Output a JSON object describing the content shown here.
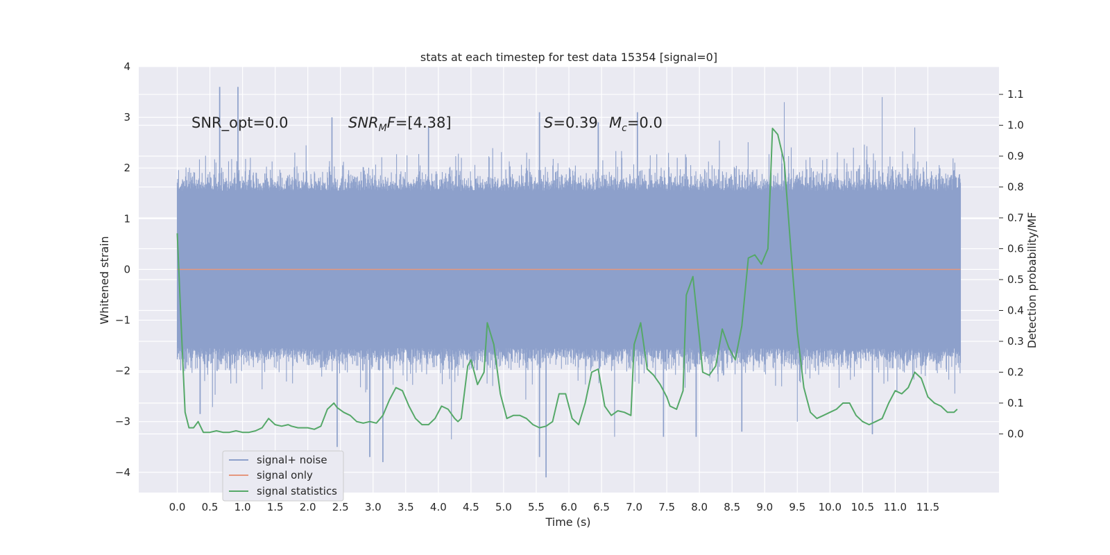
{
  "chart_data": {
    "type": "line",
    "title": "stats at each timestep for test data 15354 [signal=0]",
    "xlabel": "Time (s)",
    "ylabel": "Whitened strain",
    "y2label": "Detection probability/MF",
    "xlim": [
      -0.59,
      12.59
    ],
    "ylim": [
      -4.4,
      4.0
    ],
    "y2lim": [
      -0.19,
      1.19
    ],
    "x_ticks": [
      "0.0",
      "0.5",
      "1.0",
      "1.5",
      "2.0",
      "2.5",
      "3.0",
      "3.5",
      "4.0",
      "4.5",
      "5.0",
      "5.5",
      "6.0",
      "6.5",
      "7.0",
      "7.5",
      "8.0",
      "8.5",
      "9.0",
      "9.5",
      "10.0",
      "10.5",
      "11.0",
      "11.5"
    ],
    "y_ticks": [
      "4",
      "3",
      "2",
      "1",
      "0",
      "−1",
      "−2",
      "−3",
      "−4"
    ],
    "y2_ticks": [
      "1.1",
      "1.0",
      "0.9",
      "0.8",
      "0.7",
      "0.6",
      "0.5",
      "0.4",
      "0.3",
      "0.2",
      "0.1",
      "0.0"
    ],
    "grid": true,
    "legend_placement": "bottom-left",
    "annotations": {
      "snr_opt": "SNR_opt=0.0",
      "snr_mf_prefix": "SNR",
      "snr_mf_sub": "M",
      "snr_mf_mid": "F",
      "snr_mf_suffix": "=[4.38]",
      "s_label": "S",
      "s_value": "=0.39",
      "mc_label": "M",
      "mc_sub": "c",
      "mc_value": "=0.0"
    },
    "series": [
      {
        "name": "signal+ noise",
        "color": "#8da0cb",
        "kind": "dense noise band, approx. range -2.4 to +2.3 with spikes to about -4.1 / +3.6",
        "x_range": [
          0,
          12.0
        ],
        "spikes_up": [
          [
            0.65,
            3.6
          ],
          [
            0.93,
            3.6
          ],
          [
            2.37,
            3.0
          ],
          [
            3.85,
            2.8
          ],
          [
            5.55,
            3.1
          ],
          [
            6.45,
            2.9
          ],
          [
            7.05,
            3.1
          ],
          [
            9.3,
            3.3
          ],
          [
            10.8,
            3.4
          ],
          [
            11.3,
            2.8
          ]
        ],
        "spikes_down": [
          [
            0.35,
            -2.85
          ],
          [
            2.45,
            -3.5
          ],
          [
            2.95,
            -3.7
          ],
          [
            3.15,
            -3.8
          ],
          [
            4.2,
            -3.35
          ],
          [
            5.55,
            -3.7
          ],
          [
            5.65,
            -4.1
          ],
          [
            6.7,
            -3.3
          ],
          [
            7.45,
            -3.3
          ],
          [
            7.95,
            -3.3
          ],
          [
            8.65,
            -3.2
          ],
          [
            9.5,
            -3.0
          ],
          [
            10.65,
            -3.25
          ]
        ]
      },
      {
        "name": "signal only",
        "color": "#e5977d",
        "x": [
          0,
          12.0
        ],
        "y": [
          0,
          0
        ]
      },
      {
        "name": "signal statistics",
        "color": "#55a868",
        "axis": "right",
        "x": [
          0.0,
          0.06,
          0.12,
          0.18,
          0.25,
          0.32,
          0.4,
          0.5,
          0.6,
          0.7,
          0.8,
          0.9,
          1.0,
          1.1,
          1.2,
          1.3,
          1.4,
          1.5,
          1.6,
          1.7,
          1.75,
          1.85,
          1.9,
          2.0,
          2.1,
          2.2,
          2.3,
          2.4,
          2.45,
          2.55,
          2.65,
          2.75,
          2.85,
          2.95,
          3.05,
          3.15,
          3.25,
          3.35,
          3.45,
          3.55,
          3.65,
          3.75,
          3.85,
          3.95,
          4.05,
          4.15,
          4.25,
          4.3,
          4.35,
          4.45,
          4.5,
          4.6,
          4.7,
          4.75,
          4.85,
          4.95,
          5.05,
          5.15,
          5.25,
          5.35,
          5.45,
          5.55,
          5.65,
          5.75,
          5.85,
          5.95,
          6.05,
          6.15,
          6.25,
          6.35,
          6.45,
          6.55,
          6.65,
          6.75,
          6.85,
          6.95,
          7.0,
          7.1,
          7.2,
          7.3,
          7.4,
          7.5,
          7.55,
          7.65,
          7.75,
          7.8,
          7.9,
          8.0,
          8.05,
          8.15,
          8.25,
          8.35,
          8.45,
          8.55,
          8.65,
          8.75,
          8.85,
          8.95,
          9.05,
          9.12,
          9.2,
          9.3,
          9.4,
          9.5,
          9.6,
          9.7,
          9.8,
          9.9,
          10.0,
          10.1,
          10.2,
          10.3,
          10.4,
          10.5,
          10.6,
          10.7,
          10.8,
          10.9,
          11.0,
          11.1,
          11.2,
          11.3,
          11.4,
          11.5,
          11.6,
          11.7,
          11.8,
          11.9,
          11.95
        ],
        "y": [
          0.65,
          0.35,
          0.07,
          0.02,
          0.02,
          0.04,
          0.005,
          0.005,
          0.01,
          0.005,
          0.005,
          0.01,
          0.005,
          0.005,
          0.01,
          0.02,
          0.05,
          0.03,
          0.025,
          0.03,
          0.025,
          0.02,
          0.02,
          0.02,
          0.015,
          0.025,
          0.08,
          0.1,
          0.085,
          0.07,
          0.06,
          0.04,
          0.035,
          0.04,
          0.035,
          0.06,
          0.11,
          0.15,
          0.14,
          0.09,
          0.05,
          0.03,
          0.03,
          0.05,
          0.09,
          0.08,
          0.05,
          0.04,
          0.05,
          0.22,
          0.24,
          0.16,
          0.2,
          0.36,
          0.29,
          0.13,
          0.05,
          0.06,
          0.06,
          0.05,
          0.03,
          0.02,
          0.025,
          0.04,
          0.13,
          0.13,
          0.05,
          0.03,
          0.1,
          0.2,
          0.21,
          0.09,
          0.06,
          0.075,
          0.07,
          0.06,
          0.29,
          0.36,
          0.21,
          0.19,
          0.16,
          0.12,
          0.09,
          0.08,
          0.14,
          0.45,
          0.51,
          0.31,
          0.2,
          0.19,
          0.22,
          0.34,
          0.28,
          0.24,
          0.35,
          0.57,
          0.58,
          0.55,
          0.6,
          0.99,
          0.97,
          0.88,
          0.6,
          0.33,
          0.15,
          0.07,
          0.05,
          0.06,
          0.07,
          0.08,
          0.1,
          0.1,
          0.06,
          0.04,
          0.03,
          0.04,
          0.05,
          0.1,
          0.14,
          0.13,
          0.15,
          0.2,
          0.18,
          0.12,
          0.1,
          0.09,
          0.07,
          0.07,
          0.08
        ]
      }
    ]
  }
}
